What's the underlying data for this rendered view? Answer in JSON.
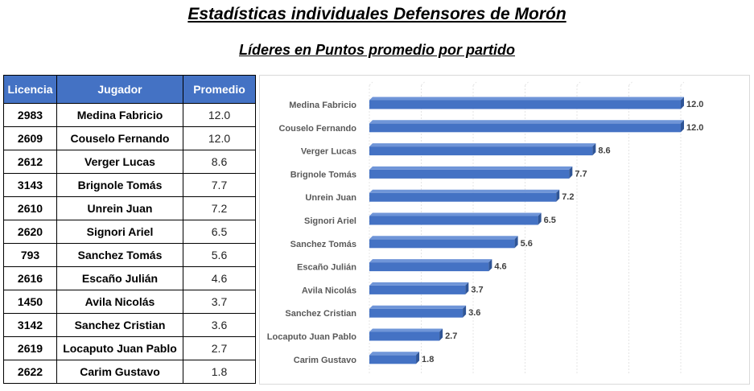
{
  "header": {
    "title": "Estadísticas individuales Defensores de Morón",
    "subtitle": "Líderes en Puntos promedio por partido"
  },
  "table": {
    "columns": [
      "Licencia",
      "Jugador",
      "Promedio"
    ],
    "rows": [
      {
        "licencia": "2983",
        "jugador": "Medina Fabricio",
        "promedio": "12.0"
      },
      {
        "licencia": "2609",
        "jugador": "Couselo Fernando",
        "promedio": "12.0"
      },
      {
        "licencia": "2612",
        "jugador": "Verger Lucas",
        "promedio": "8.6"
      },
      {
        "licencia": "3143",
        "jugador": "Brignole Tomás",
        "promedio": "7.7"
      },
      {
        "licencia": "2610",
        "jugador": "Unrein Juan",
        "promedio": "7.2"
      },
      {
        "licencia": "2620",
        "jugador": "Signori Ariel",
        "promedio": "6.5"
      },
      {
        "licencia": "793",
        "jugador": "Sanchez Tomás",
        "promedio": "5.6"
      },
      {
        "licencia": "2616",
        "jugador": "Escaño Julián",
        "promedio": "4.6"
      },
      {
        "licencia": "1450",
        "jugador": "Avila Nicolás",
        "promedio": "3.7"
      },
      {
        "licencia": "3142",
        "jugador": "Sanchez Cristian",
        "promedio": "3.6"
      },
      {
        "licencia": "2619",
        "jugador": "Locaputo Juan Pablo",
        "promedio": "2.7"
      },
      {
        "licencia": "2622",
        "jugador": "Carim Gustavo",
        "promedio": "1.8"
      }
    ]
  },
  "chart_data": {
    "type": "bar",
    "orientation": "horizontal",
    "style": "3d",
    "categories": [
      "Medina Fabricio",
      "Couselo Fernando",
      "Verger Lucas",
      "Brignole Tomás",
      "Unrein Juan",
      "Signori Ariel",
      "Sanchez Tomás",
      "Escaño Julián",
      "Avila Nicolás",
      "Sanchez Cristian",
      "Locaputo Juan Pablo",
      "Carim Gustavo"
    ],
    "values": [
      12.0,
      12.0,
      8.6,
      7.7,
      7.2,
      6.5,
      5.6,
      4.6,
      3.7,
      3.6,
      2.7,
      1.8
    ],
    "value_labels": [
      "12.0",
      "12.0",
      "8.6",
      "7.7",
      "7.2",
      "6.5",
      "5.6",
      "4.6",
      "3.7",
      "3.6",
      "2.7",
      "1.8"
    ],
    "xlim": [
      0,
      12
    ],
    "grid": true,
    "legend": "none",
    "bar_color": "#4472c4",
    "bar_top_color": "#6f95d8",
    "bar_side_color": "#2f5597"
  }
}
